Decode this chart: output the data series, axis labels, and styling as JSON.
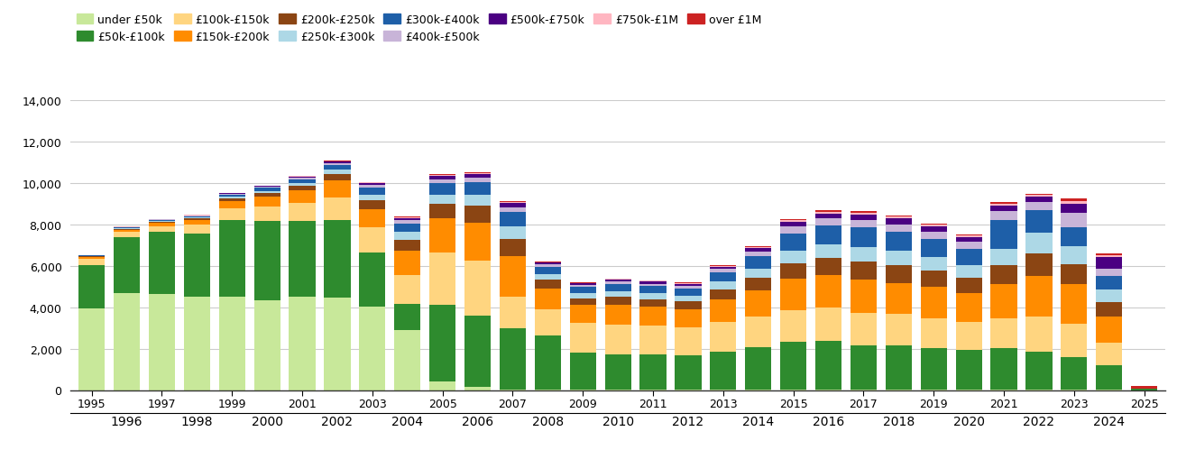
{
  "years": [
    1995,
    1996,
    1997,
    1998,
    1999,
    2000,
    2001,
    2002,
    2003,
    2004,
    2005,
    2006,
    2007,
    2008,
    2009,
    2010,
    2011,
    2012,
    2013,
    2014,
    2015,
    2016,
    2017,
    2018,
    2019,
    2020,
    2021,
    2022,
    2023,
    2024,
    2025
  ],
  "bands": [
    {
      "label": "under £50k",
      "color": "#c8e89a",
      "values": [
        3950,
        4700,
        4650,
        4500,
        4500,
        4350,
        4500,
        4450,
        4050,
        2900,
        400,
        150,
        30,
        20,
        10,
        10,
        10,
        10,
        10,
        10,
        20,
        20,
        20,
        20,
        20,
        20,
        20,
        20,
        20,
        20,
        0
      ]
    },
    {
      "label": "£50k-£100k",
      "color": "#2e8b2e",
      "values": [
        2100,
        2700,
        3000,
        3050,
        3700,
        3800,
        3650,
        3750,
        2600,
        1250,
        3700,
        3450,
        2950,
        2600,
        1800,
        1700,
        1700,
        1650,
        1850,
        2050,
        2300,
        2350,
        2150,
        2150,
        2000,
        1900,
        2000,
        1850,
        1550,
        1200,
        80
      ]
    },
    {
      "label": "£100k-£150k",
      "color": "#ffd580",
      "values": [
        270,
        230,
        270,
        430,
        560,
        720,
        900,
        1100,
        1200,
        1400,
        2550,
        2650,
        1550,
        1300,
        1450,
        1450,
        1400,
        1350,
        1450,
        1500,
        1550,
        1600,
        1550,
        1500,
        1450,
        1350,
        1450,
        1700,
        1650,
        1050,
        0
      ]
    },
    {
      "label": "£150k-£200k",
      "color": "#ff8c00",
      "values": [
        100,
        120,
        160,
        220,
        350,
        470,
        580,
        820,
        900,
        1200,
        1650,
        1850,
        1950,
        1000,
        850,
        950,
        900,
        900,
        1050,
        1250,
        1500,
        1600,
        1600,
        1500,
        1500,
        1400,
        1650,
        1950,
        1900,
        1300,
        0
      ]
    },
    {
      "label": "£200k-£250k",
      "color": "#8b4513",
      "values": [
        30,
        45,
        60,
        80,
        140,
        175,
        230,
        320,
        410,
        510,
        680,
        800,
        820,
        420,
        330,
        380,
        380,
        380,
        510,
        610,
        760,
        810,
        870,
        870,
        820,
        760,
        900,
        1100,
        980,
        700,
        0
      ]
    },
    {
      "label": "£250k-£300k",
      "color": "#add8e6",
      "values": [
        20,
        28,
        42,
        58,
        85,
        110,
        150,
        195,
        290,
        370,
        460,
        520,
        600,
        280,
        240,
        285,
        285,
        285,
        380,
        460,
        600,
        650,
        700,
        700,
        650,
        600,
        780,
        970,
        830,
        590,
        0
      ]
    },
    {
      "label": "£300k-£400k",
      "color": "#1e5fa8",
      "values": [
        25,
        40,
        52,
        68,
        105,
        145,
        185,
        240,
        340,
        420,
        560,
        610,
        710,
        330,
        290,
        340,
        340,
        340,
        430,
        600,
        850,
        910,
        960,
        910,
        860,
        810,
        1400,
        1100,
        950,
        660,
        0
      ]
    },
    {
      "label": "£400k-£500k",
      "color": "#c8b4d8",
      "values": [
        10,
        13,
        18,
        25,
        40,
        55,
        70,
        90,
        115,
        155,
        195,
        225,
        235,
        110,
        100,
        125,
        125,
        125,
        160,
        230,
        320,
        345,
        365,
        365,
        345,
        320,
        430,
        380,
        700,
        345,
        0
      ]
    },
    {
      "label": "£500k-£750k",
      "color": "#4b0082",
      "values": [
        7,
        10,
        13,
        18,
        28,
        40,
        52,
        64,
        88,
        108,
        145,
        165,
        185,
        86,
        79,
        98,
        98,
        98,
        115,
        160,
        225,
        245,
        265,
        265,
        245,
        222,
        285,
        258,
        415,
        550,
        0
      ]
    },
    {
      "label": "£750k-£1M",
      "color": "#ffb6c1",
      "values": [
        3,
        4,
        6,
        7,
        11,
        14,
        18,
        22,
        30,
        36,
        48,
        54,
        68,
        32,
        28,
        36,
        36,
        36,
        42,
        56,
        82,
        90,
        98,
        98,
        88,
        80,
        102,
        94,
        154,
        106,
        0
      ]
    },
    {
      "label": "over £1M",
      "color": "#cc2222",
      "values": [
        3,
        4,
        5,
        6,
        9,
        11,
        13,
        18,
        22,
        27,
        36,
        40,
        52,
        24,
        21,
        27,
        27,
        27,
        32,
        42,
        58,
        66,
        72,
        72,
        65,
        60,
        78,
        70,
        110,
        80,
        100
      ]
    }
  ],
  "ylim": [
    0,
    14000
  ],
  "yticks": [
    0,
    2000,
    4000,
    6000,
    8000,
    10000,
    12000,
    14000
  ],
  "figsize": [
    13.05,
    5.1
  ],
  "dpi": 100
}
